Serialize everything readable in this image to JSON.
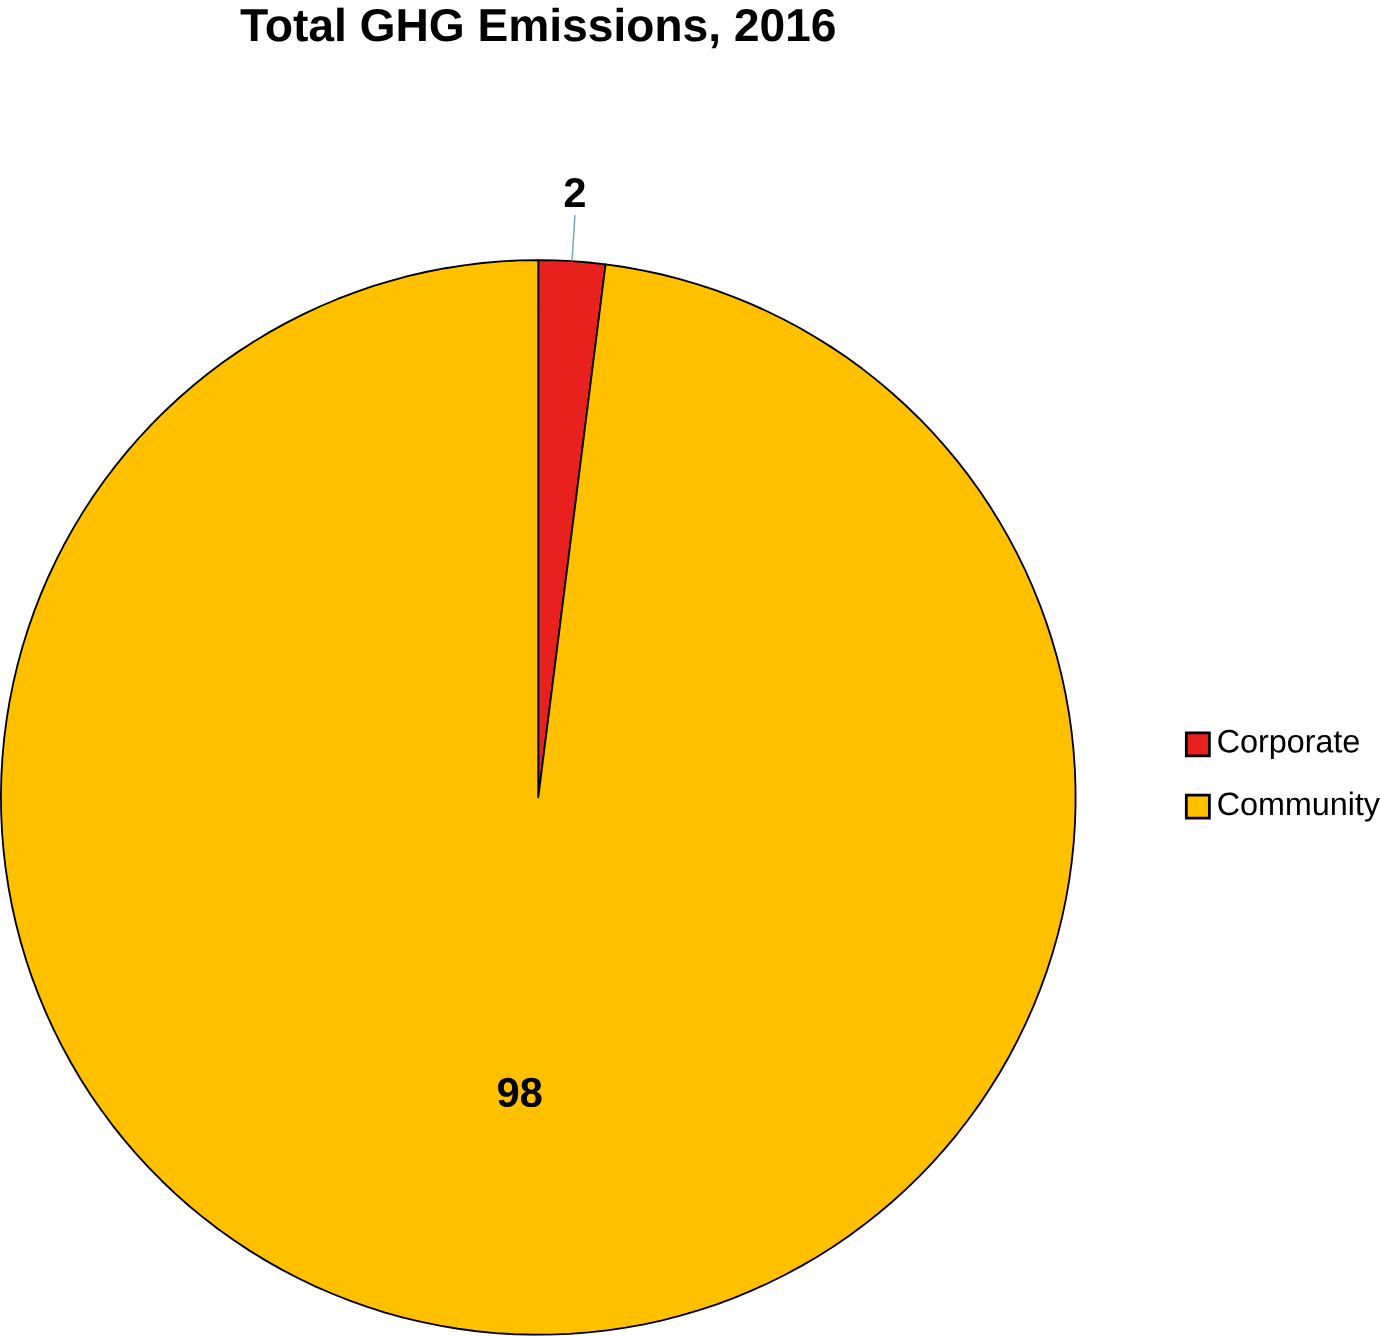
{
  "chart_data": {
    "type": "pie",
    "title": "Total GHG Emissions, 2016",
    "categories": [
      "Corporate",
      "Community"
    ],
    "values": [
      2,
      98
    ],
    "colors": [
      "#e8201e",
      "#ffc000"
    ],
    "data_labels": true,
    "legend": "right"
  }
}
